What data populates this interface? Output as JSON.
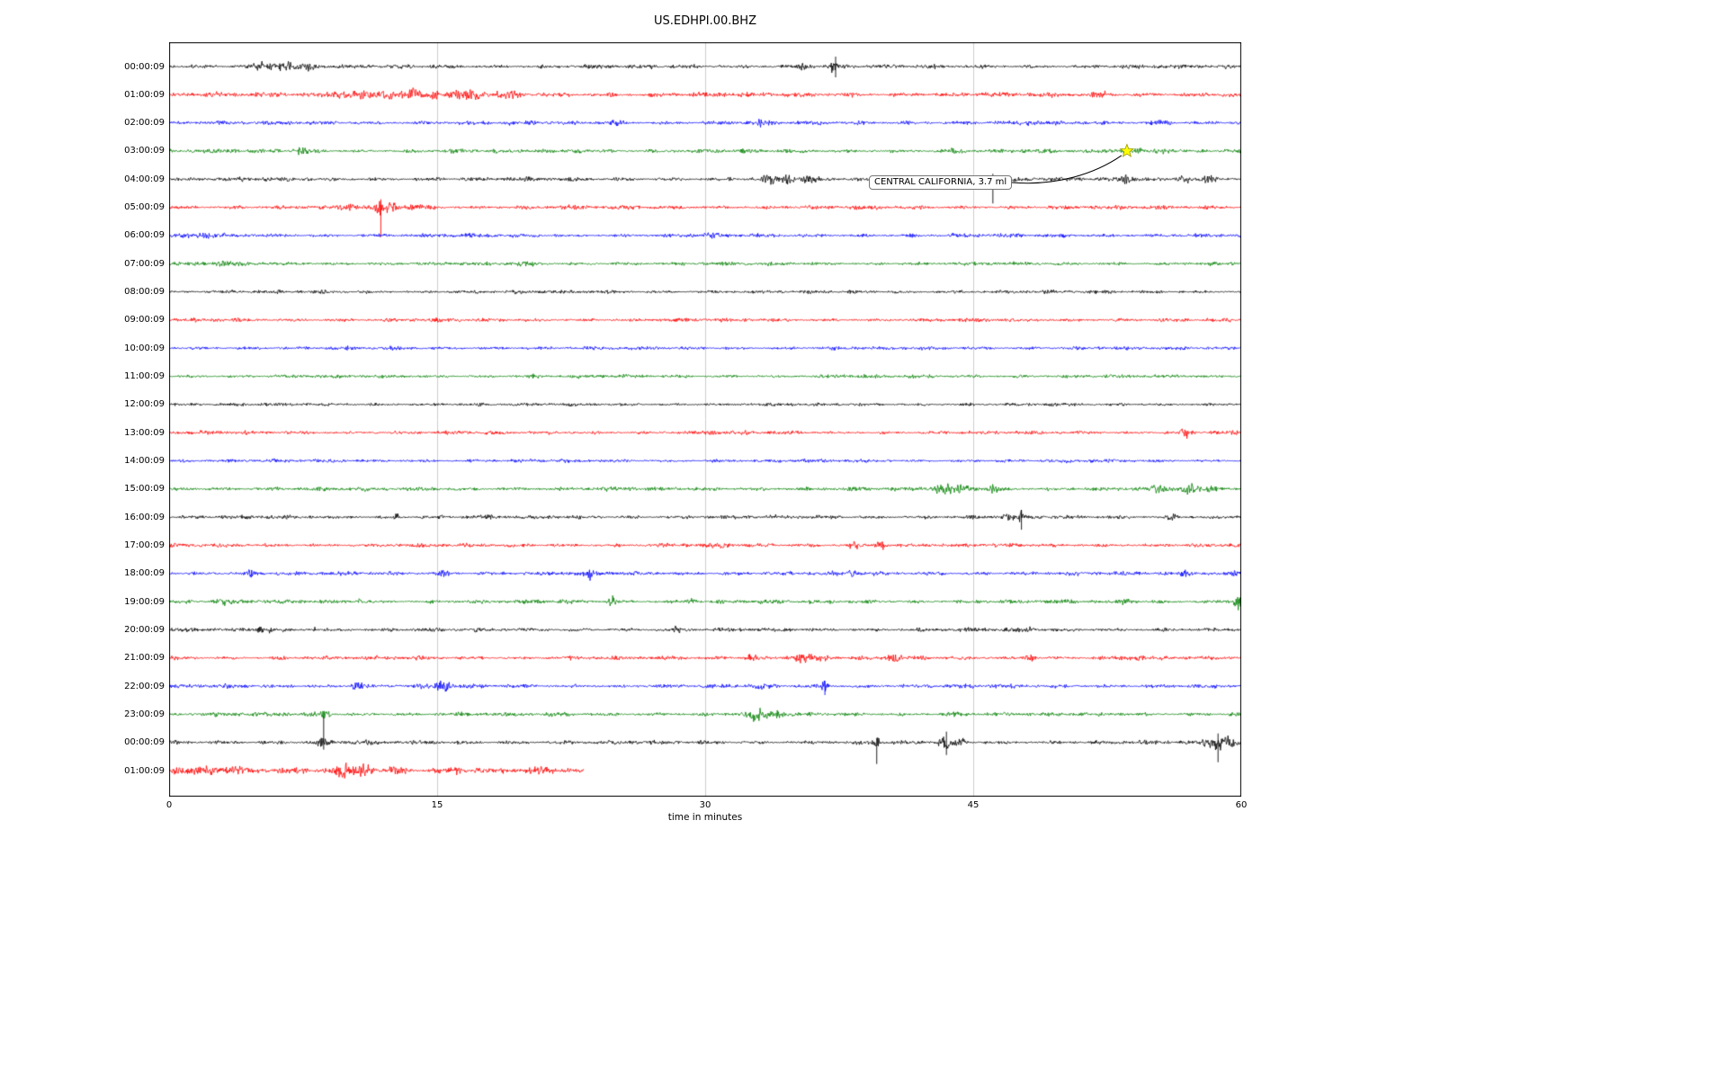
{
  "title": "US.EDHPI.00.BHZ",
  "xlabel": "time in minutes",
  "annotation": {
    "text": "CENTRAL CALIFORNIA, 3.7 ml"
  },
  "chart_data": {
    "type": "line",
    "title": "US.EDHPI.00.BHZ",
    "xlabel": "time in minutes",
    "x_range_minutes": [
      0,
      60
    ],
    "x_ticks": [
      0,
      15,
      30,
      45,
      60
    ],
    "grid": "vertical-ticks",
    "legend": "none",
    "colors": {
      "black": "#000000",
      "red": "#ff0000",
      "blue": "#0000ff",
      "green": "#008000"
    },
    "event_marker": {
      "row_label": "03:00:09",
      "row_index": 3,
      "minute": 53.6,
      "symbol": "star",
      "color": "#ffff00",
      "annotation": "CENTRAL CALIFORNIA, 3.7 ml"
    },
    "rows": [
      {
        "label": "00:00:09",
        "color": "black",
        "base_amp": 2.0,
        "events": [
          [
            5.4,
            6,
            0.5
          ],
          [
            6.6,
            5,
            0.3
          ],
          [
            7.8,
            4,
            0.25
          ],
          [
            35.6,
            4,
            0.3
          ],
          [
            37.2,
            8,
            0.12
          ]
        ],
        "spikes": [
          [
            37.3,
            11,
            12
          ]
        ]
      },
      {
        "label": "01:00:09",
        "color": "red",
        "base_amp": 2.4,
        "events": [
          [
            9.4,
            4,
            0.4
          ],
          [
            10.6,
            5,
            0.3
          ],
          [
            12.0,
            6,
            0.5
          ],
          [
            13.6,
            11,
            0.35
          ],
          [
            14.9,
            5,
            0.3
          ],
          [
            16.8,
            6,
            0.6
          ],
          [
            19.0,
            3,
            0.4
          ],
          [
            52.3,
            3,
            0.25
          ]
        ]
      },
      {
        "label": "02:00:09",
        "color": "blue",
        "base_amp": 2.0,
        "events": [
          [
            25.0,
            2,
            0.3
          ],
          [
            33.2,
            4,
            0.3
          ],
          [
            48.0,
            2,
            0.3
          ],
          [
            55.6,
            3,
            0.25
          ]
        ]
      },
      {
        "label": "03:00:09",
        "color": "green",
        "base_amp": 2.0,
        "events": [
          [
            7.4,
            3,
            0.3
          ],
          [
            22.8,
            4,
            0.15
          ],
          [
            44.0,
            2,
            0.3
          ],
          [
            53.8,
            3,
            0.8
          ],
          [
            55.8,
            3,
            0.3
          ]
        ]
      },
      {
        "label": "04:00:09",
        "color": "black",
        "base_amp": 2.0,
        "events": [
          [
            33.6,
            4,
            0.3
          ],
          [
            34.7,
            5,
            0.25
          ],
          [
            35.8,
            4,
            0.3
          ],
          [
            53.6,
            4,
            0.4
          ],
          [
            56.8,
            5,
            0.3
          ],
          [
            58.2,
            4,
            0.3
          ]
        ],
        "spikes": [
          [
            46.1,
            6,
            27
          ]
        ]
      },
      {
        "label": "05:00:09",
        "color": "red",
        "base_amp": 2.0,
        "events": [
          [
            10.1,
            4,
            0.3
          ],
          [
            11.8,
            7,
            0.25
          ],
          [
            12.5,
            5,
            0.3
          ],
          [
            14.0,
            3,
            0.5
          ]
        ],
        "spikes": [
          [
            11.85,
            9,
            33
          ]
        ]
      },
      {
        "label": "06:00:09",
        "color": "blue",
        "base_amp": 1.9,
        "events": [
          [
            2.0,
            2,
            0.5
          ],
          [
            30.0,
            1.5,
            0.5
          ]
        ]
      },
      {
        "label": "07:00:09",
        "color": "green",
        "base_amp": 1.8,
        "events": [
          [
            3.0,
            1.5,
            0.4
          ],
          [
            20.0,
            1.5,
            0.5
          ]
        ]
      },
      {
        "label": "08:00:09",
        "color": "black",
        "base_amp": 1.7,
        "events": []
      },
      {
        "label": "09:00:09",
        "color": "red",
        "base_amp": 1.8,
        "events": []
      },
      {
        "label": "10:00:09",
        "color": "blue",
        "base_amp": 1.7,
        "events": []
      },
      {
        "label": "11:00:09",
        "color": "green",
        "base_amp": 1.7,
        "events": [
          [
            20.5,
            2,
            0.2
          ]
        ]
      },
      {
        "label": "12:00:09",
        "color": "black",
        "base_amp": 1.6,
        "events": []
      },
      {
        "label": "13:00:09",
        "color": "red",
        "base_amp": 1.8,
        "events": [
          [
            30.5,
            2,
            0.2
          ],
          [
            56.9,
            5,
            0.2
          ]
        ]
      },
      {
        "label": "14:00:09",
        "color": "blue",
        "base_amp": 1.7,
        "events": []
      },
      {
        "label": "15:00:09",
        "color": "green",
        "base_amp": 2.0,
        "events": [
          [
            43.4,
            6,
            0.5
          ],
          [
            44.6,
            5,
            0.3
          ],
          [
            46.1,
            4,
            0.3
          ],
          [
            55.6,
            5,
            0.4
          ],
          [
            57.2,
            6,
            0.3
          ],
          [
            58.5,
            3,
            0.3
          ]
        ]
      },
      {
        "label": "16:00:09",
        "color": "black",
        "base_amp": 1.9,
        "events": [
          [
            12.7,
            5,
            0.08
          ],
          [
            46.9,
            4,
            0.2
          ],
          [
            47.7,
            6,
            0.15
          ],
          [
            56.2,
            3,
            0.2
          ]
        ],
        "spikes": [
          [
            47.7,
            8,
            14
          ]
        ]
      },
      {
        "label": "17:00:09",
        "color": "red",
        "base_amp": 1.9,
        "events": [
          [
            31.0,
            2,
            0.3
          ],
          [
            38.3,
            5,
            0.2
          ],
          [
            39.8,
            5,
            0.2
          ]
        ]
      },
      {
        "label": "18:00:09",
        "color": "blue",
        "base_amp": 2.0,
        "events": [
          [
            4.6,
            5,
            0.15
          ],
          [
            15.4,
            4,
            0.2
          ],
          [
            23.6,
            5,
            0.2
          ],
          [
            38.2,
            3,
            0.2
          ],
          [
            57.0,
            2,
            0.3
          ],
          [
            59.8,
            4,
            0.2
          ]
        ]
      },
      {
        "label": "19:00:09",
        "color": "green",
        "base_amp": 2.0,
        "events": [
          [
            3.0,
            4,
            0.25
          ],
          [
            10.6,
            4,
            0.1
          ],
          [
            24.8,
            6,
            0.15
          ],
          [
            29.2,
            3,
            0.2
          ],
          [
            53.6,
            4,
            0.25
          ],
          [
            59.9,
            12,
            0.2
          ]
        ]
      },
      {
        "label": "20:00:09",
        "color": "black",
        "base_amp": 1.9,
        "events": [
          [
            5.4,
            5,
            0.35
          ],
          [
            8.1,
            4,
            0.1
          ],
          [
            28.4,
            4,
            0.15
          ],
          [
            48.0,
            2,
            0.3
          ]
        ]
      },
      {
        "label": "21:00:09",
        "color": "red",
        "base_amp": 1.9,
        "events": [
          [
            32.6,
            4,
            0.25
          ],
          [
            35.3,
            5,
            0.5
          ],
          [
            36.5,
            4,
            0.3
          ],
          [
            40.6,
            5,
            0.25
          ],
          [
            48.2,
            4,
            0.3
          ],
          [
            54.0,
            2,
            0.3
          ]
        ]
      },
      {
        "label": "22:00:09",
        "color": "blue",
        "base_amp": 2.0,
        "events": [
          [
            10.6,
            4,
            0.3
          ],
          [
            15.2,
            6,
            0.4
          ],
          [
            33.0,
            2,
            0.3
          ],
          [
            36.6,
            6,
            0.2
          ]
        ],
        "spikes": [
          [
            36.7,
            6,
            10
          ]
        ]
      },
      {
        "label": "23:00:09",
        "color": "green",
        "base_amp": 2.0,
        "events": [
          [
            8.6,
            3,
            0.3
          ],
          [
            32.9,
            7,
            0.45
          ],
          [
            34.0,
            4,
            0.3
          ],
          [
            44.0,
            2,
            0.3
          ]
        ]
      },
      {
        "label": "00:00:09",
        "color": "black",
        "base_amp": 2.0,
        "events": [
          [
            8.6,
            4,
            0.3
          ],
          [
            39.6,
            4,
            0.2
          ],
          [
            43.4,
            6,
            0.3
          ],
          [
            44.3,
            4,
            0.2
          ],
          [
            58.6,
            8,
            0.4
          ],
          [
            59.3,
            6,
            0.3
          ]
        ],
        "spikes": [
          [
            8.65,
            28,
            8
          ],
          [
            39.6,
            5,
            24
          ],
          [
            43.5,
            12,
            14
          ],
          [
            58.7,
            10,
            22
          ]
        ]
      },
      {
        "label": "01:00:09",
        "color": "red",
        "base_amp": 2.8,
        "end_min": 23.2,
        "events": [
          [
            0.6,
            4,
            0.4
          ],
          [
            2.1,
            4,
            0.4
          ],
          [
            3.5,
            3,
            0.4
          ],
          [
            9.7,
            9,
            0.35
          ],
          [
            10.9,
            8,
            0.3
          ],
          [
            12.9,
            5,
            0.4
          ],
          [
            16.1,
            3,
            0.4
          ],
          [
            21.0,
            2,
            0.5
          ]
        ]
      }
    ]
  }
}
